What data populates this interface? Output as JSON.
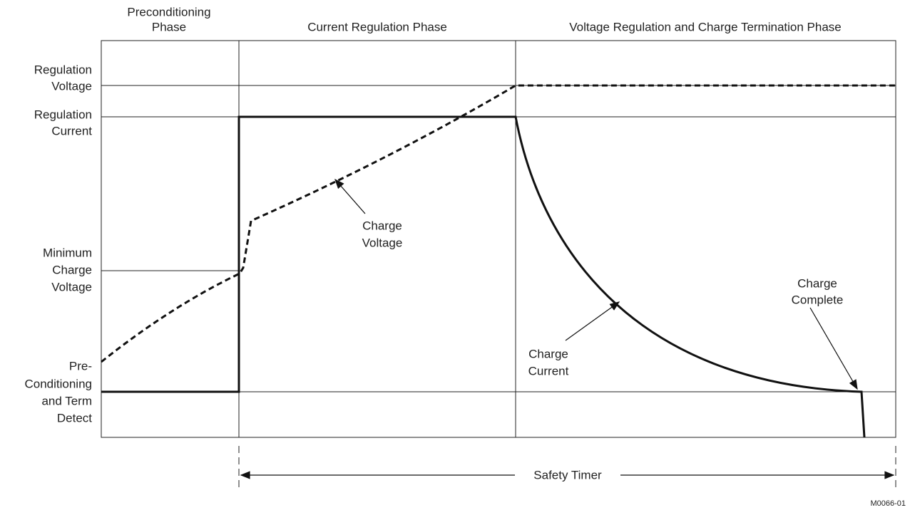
{
  "phases": {
    "preconditioning": [
      "Preconditioning",
      "Phase"
    ],
    "current_regulation": "Current Regulation Phase",
    "voltage_regulation": "Voltage Regulation and Charge Termination Phase"
  },
  "levels": {
    "regulation_voltage": [
      "Regulation",
      "Voltage"
    ],
    "regulation_current": [
      "Regulation",
      "Current"
    ],
    "minimum_charge_voltage": [
      "Minimum",
      "Charge",
      "Voltage"
    ],
    "preconditioning_term_detect": [
      "Pre-",
      "Conditioning",
      "and Term",
      "Detect"
    ]
  },
  "annotations": {
    "charge_voltage": [
      "Charge",
      "Voltage"
    ],
    "charge_current": [
      "Charge",
      "Current"
    ],
    "charge_complete": [
      "Charge",
      "Complete"
    ]
  },
  "safety_timer": "Safety Timer",
  "figure_id": "M0066-01"
}
